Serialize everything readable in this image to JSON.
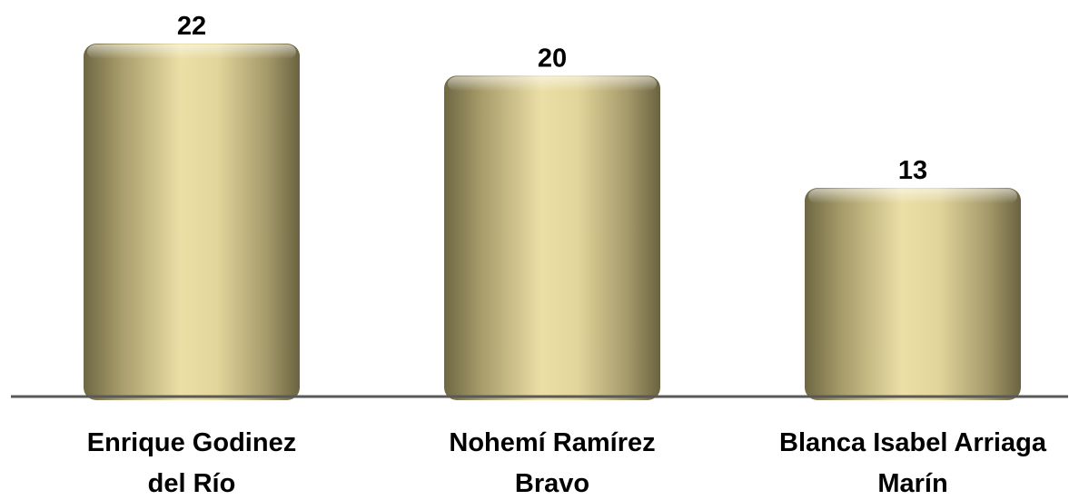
{
  "chart_data": {
    "type": "bar",
    "categories": [
      [
        "Enrique Godinez",
        "del Río"
      ],
      [
        "Nohemí Ramírez",
        "Bravo"
      ],
      [
        "Blanca Isabel Arriaga",
        "Marín"
      ]
    ],
    "values": [
      22,
      20,
      13
    ],
    "title": "",
    "xlabel": "",
    "ylabel": "",
    "ylim": [
      0,
      22
    ],
    "grid": false,
    "legend": "none",
    "data_labels": [
      "22",
      "20",
      "13"
    ],
    "colors": {
      "bar_light": "#ECDFA6",
      "bar_mid": "#C9BC85",
      "bar_dark": "#6E6743",
      "axis": "#595959"
    }
  }
}
